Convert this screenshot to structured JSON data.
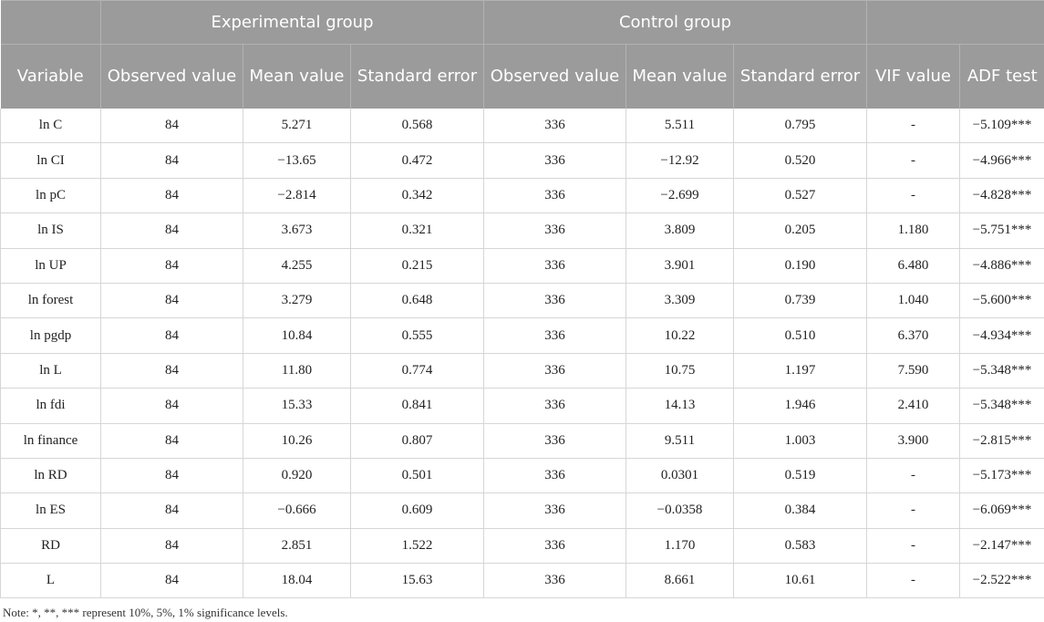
{
  "header": {
    "variable": "Variable",
    "experimental_group": "Experimental group",
    "control_group": "Control group",
    "observed_value": "Observed value",
    "mean_value": "Mean value",
    "standard_error": "Standard error",
    "vif_value": "VIF value",
    "adf_test": "ADF test"
  },
  "rows": [
    [
      "ln C",
      "84",
      "5.271",
      "0.568",
      "336",
      "5.511",
      "0.795",
      "-",
      "−5.109***"
    ],
    [
      "ln CI",
      "84",
      "−13.65",
      "0.472",
      "336",
      "−12.92",
      "0.520",
      "-",
      "−4.966***"
    ],
    [
      "ln pC",
      "84",
      "−2.814",
      "0.342",
      "336",
      "−2.699",
      "0.527",
      "-",
      "−4.828***"
    ],
    [
      "ln IS",
      "84",
      "3.673",
      "0.321",
      "336",
      "3.809",
      "0.205",
      "1.180",
      "−5.751***"
    ],
    [
      "ln UP",
      "84",
      "4.255",
      "0.215",
      "336",
      "3.901",
      "0.190",
      "6.480",
      "−4.886***"
    ],
    [
      "ln forest",
      "84",
      "3.279",
      "0.648",
      "336",
      "3.309",
      "0.739",
      "1.040",
      "−5.600***"
    ],
    [
      "ln pgdp",
      "84",
      "10.84",
      "0.555",
      "336",
      "10.22",
      "0.510",
      "6.370",
      "−4.934***"
    ],
    [
      "ln L",
      "84",
      "11.80",
      "0.774",
      "336",
      "10.75",
      "1.197",
      "7.590",
      "−5.348***"
    ],
    [
      "ln fdi",
      "84",
      "15.33",
      "0.841",
      "336",
      "14.13",
      "1.946",
      "2.410",
      "−5.348***"
    ],
    [
      "ln finance",
      "84",
      "10.26",
      "0.807",
      "336",
      "9.511",
      "1.003",
      "3.900",
      "−2.815***"
    ],
    [
      "ln RD",
      "84",
      "0.920",
      "0.501",
      "336",
      "0.0301",
      "0.519",
      "-",
      "−5.173***"
    ],
    [
      "ln ES",
      "84",
      "−0.666",
      "0.609",
      "336",
      "−0.0358",
      "0.384",
      "-",
      "−6.069***"
    ],
    [
      "RD",
      "84",
      "2.851",
      "1.522",
      "336",
      "1.170",
      "0.583",
      "-",
      "−2.147***"
    ],
    [
      "L",
      "84",
      "18.04",
      "15.63",
      "336",
      "8.661",
      "10.61",
      "-",
      "−2.522***"
    ]
  ],
  "note": "Note: *, **, *** represent 10%, 5%, 1% significance levels."
}
